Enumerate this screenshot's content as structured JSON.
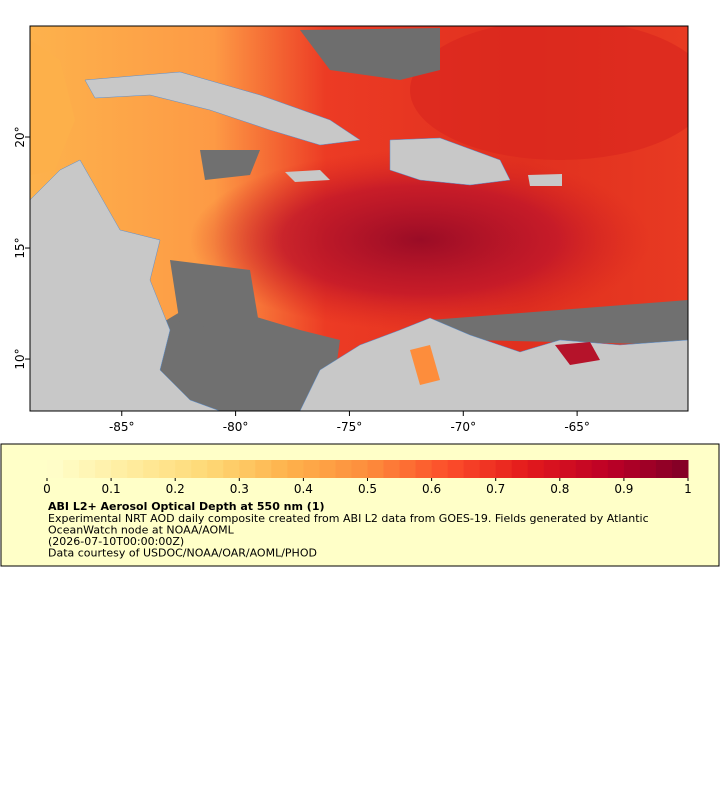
{
  "map": {
    "xlim": [
      -89.03,
      -60.13
    ],
    "ylim": [
      7.66,
      25
    ],
    "xticks": [
      {
        "value": -85,
        "label": "-85°"
      },
      {
        "value": -80,
        "label": "-80°"
      },
      {
        "value": -75,
        "label": "-75°"
      },
      {
        "value": -70,
        "label": "-70°"
      },
      {
        "value": -65,
        "label": "-65°"
      }
    ],
    "yticks": [
      {
        "value": 10,
        "label": "10°"
      },
      {
        "value": 15,
        "label": "15°"
      },
      {
        "value": 20,
        "label": "20°"
      }
    ]
  },
  "legend": {
    "colorbar": {
      "range": [
        0,
        1
      ],
      "ticks": [
        0,
        0.1,
        0.2,
        0.3,
        0.4,
        0.5,
        0.6,
        0.7,
        0.8,
        0.9,
        1
      ],
      "colormap": [
        "#ffffcc",
        "#ffeda0",
        "#fed976",
        "#feb24c",
        "#fd8d3c",
        "#fc4e2a",
        "#e31a1c",
        "#bd0026",
        "#800026"
      ]
    },
    "title": "ABI L2+ Aerosol Optical Depth at 550 nm (1)",
    "description": [
      "Experimental NRT AOD daily composite created from ABI L2 data from GOES-19. Fields generated by Atlantic",
      "OceanWatch node at NOAA/AOML",
      "(2026-07-10T00:00:00Z)",
      "Data courtesy of USDOC/NOAA/OAR/AOML/PHOD"
    ]
  }
}
